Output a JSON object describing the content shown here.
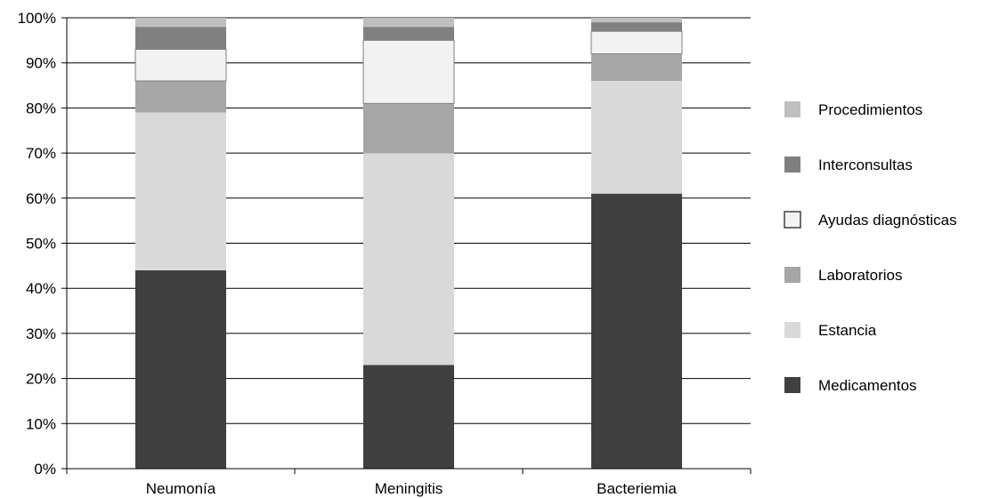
{
  "chart_data": {
    "type": "bar",
    "stacked": true,
    "normalized": true,
    "categories": [
      "Neumonía",
      "Meningitis",
      "Bacteriemia"
    ],
    "y_ticks": [
      "0%",
      "10%",
      "20%",
      "30%",
      "40%",
      "50%",
      "60%",
      "70%",
      "80%",
      "90%",
      "100%"
    ],
    "ylim": [
      0,
      100
    ],
    "grid": true,
    "legend_position": "right",
    "series": [
      {
        "name": "Medicamentos",
        "color": "#404040",
        "values": [
          44,
          23,
          61
        ]
      },
      {
        "name": "Estancia",
        "color": "#d9d9d9",
        "values": [
          35,
          47,
          25
        ]
      },
      {
        "name": "Laboratorios",
        "color": "#a6a6a6",
        "values": [
          7,
          11,
          6
        ]
      },
      {
        "name": "Ayudas diagnósticas",
        "color": "#f2f2f2",
        "values": [
          7,
          14,
          5
        ]
      },
      {
        "name": "Interconsultas",
        "color": "#808080",
        "values": [
          5,
          3,
          2
        ]
      },
      {
        "name": "Procedimientos",
        "color": "#bfbfbf",
        "values": [
          2,
          2,
          1
        ]
      }
    ]
  }
}
